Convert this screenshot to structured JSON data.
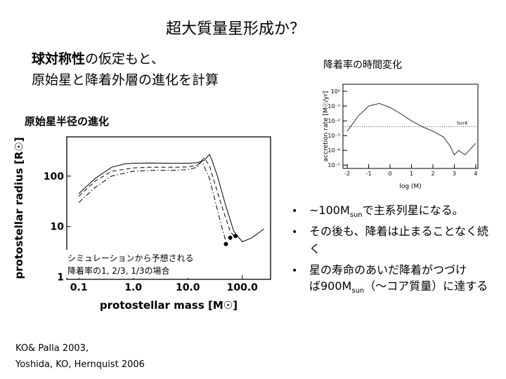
{
  "title": "超大質量星形成か？",
  "intro": {
    "bold": "球対称性",
    "rest": "の仮定もと、",
    "line2": "原始星と降着外層の進化を計算"
  },
  "left_heading": "原始星半径の進化",
  "right_heading": "降着率の時間変化",
  "charts": [
    {
      "type": "line",
      "xlabel": "protostellar mass [M☉]",
      "ylabel": "protostellar radius [R☉]",
      "xlog": true,
      "ylog": true,
      "xlim": [
        0.06,
        330
      ],
      "ylim": [
        0.9,
        600
      ],
      "xticks": [
        0.1,
        {
          "value": 1,
          "label": "1.0"
        },
        {
          "value": 10,
          "label": "10.0"
        },
        {
          "value": 100,
          "label": "100.0"
        }
      ],
      "yticks": [
        1,
        10,
        100
      ],
      "annotation": [
        "シミュレーションから予想される",
        "降着率の1, 2/3, 1/3の場合"
      ],
      "series": [
        {
          "color": "#000000",
          "style": "solid",
          "x": [
            0.1,
            0.2,
            0.4,
            0.7,
            1,
            2,
            5,
            10,
            15,
            20,
            25,
            28,
            35,
            50,
            70,
            100,
            150,
            250
          ],
          "values": [
            45,
            90,
            150,
            175,
            180,
            182,
            180,
            180,
            185,
            205,
            270,
            200,
            100,
            25,
            8,
            5,
            6,
            9
          ]
        },
        {
          "color": "#000000",
          "style": "dashed",
          "x": [
            0.1,
            0.2,
            0.4,
            1,
            2,
            5,
            10,
            15,
            20,
            25,
            40,
            60,
            70
          ],
          "values": [
            40,
            80,
            125,
            145,
            150,
            150,
            152,
            165,
            230,
            160,
            30,
            8,
            6.5
          ]
        },
        {
          "color": "#000000",
          "style": "dashdot",
          "x": [
            0.1,
            0.2,
            0.4,
            1,
            2,
            5,
            10,
            15,
            18,
            25,
            40,
            50
          ],
          "values": [
            30,
            60,
            100,
            125,
            130,
            130,
            135,
            150,
            200,
            90,
            12,
            5
          ]
        },
        {
          "color": "#000000",
          "style": "dots",
          "x": [
            50,
            60,
            75
          ],
          "values": [
            4.5,
            6,
            6.5
          ]
        }
      ]
    },
    {
      "type": "line",
      "xlabel": "log (M)",
      "ylabel": "accretion rate [M☉/yr]",
      "xlog": false,
      "ylog": true,
      "xlim": [
        -2.2,
        4.1
      ],
      "ylim": [
        6e-06,
        3
      ],
      "xticks": [
        -2,
        -1,
        0,
        1,
        2,
        3,
        4
      ],
      "yticks": [
        {
          "value": 1,
          "label": "10⁰"
        },
        {
          "value": 0.1,
          "label": "10⁻¹"
        },
        {
          "value": 0.01,
          "label": "10⁻²"
        },
        {
          "value": 0.001,
          "label": "10⁻³"
        },
        {
          "value": 0.0001,
          "label": "10⁻⁴"
        },
        {
          "value": 1e-05,
          "label": "10⁻⁵"
        }
      ],
      "hline": {
        "value": 0.004,
        "label": "Sicr8"
      },
      "series": [
        {
          "color": "#333333",
          "style": "solid",
          "x": [
            -2,
            -1.5,
            -1,
            -0.5,
            0,
            0.5,
            1,
            1.5,
            2,
            2.5,
            2.8,
            3,
            3.2,
            3.5,
            4
          ],
          "values": [
            0.002,
            0.02,
            0.1,
            0.15,
            0.08,
            0.03,
            0.01,
            0.004,
            0.002,
            0.0008,
            0.0002,
            5e-05,
            0.0001,
            5e-05,
            0.0003
          ]
        }
      ]
    }
  ],
  "bullets": [
    [
      [
        "~100M",
        {
          "sub": "sun"
        },
        "で主系列星になる。"
      ]
    ],
    [
      [
        "その後も、降着は止まることなく続"
      ],
      [
        "く"
      ]
    ],
    [
      [
        "星の寿命のあいだ降着がつづけ"
      ],
      [
        "ば900M",
        {
          "sub": "sun"
        },
        "（～コア質量）に達する"
      ]
    ]
  ],
  "references": [
    "KO& Palla 2003,",
    "Yoshida, KO, Hernquist 2006"
  ]
}
